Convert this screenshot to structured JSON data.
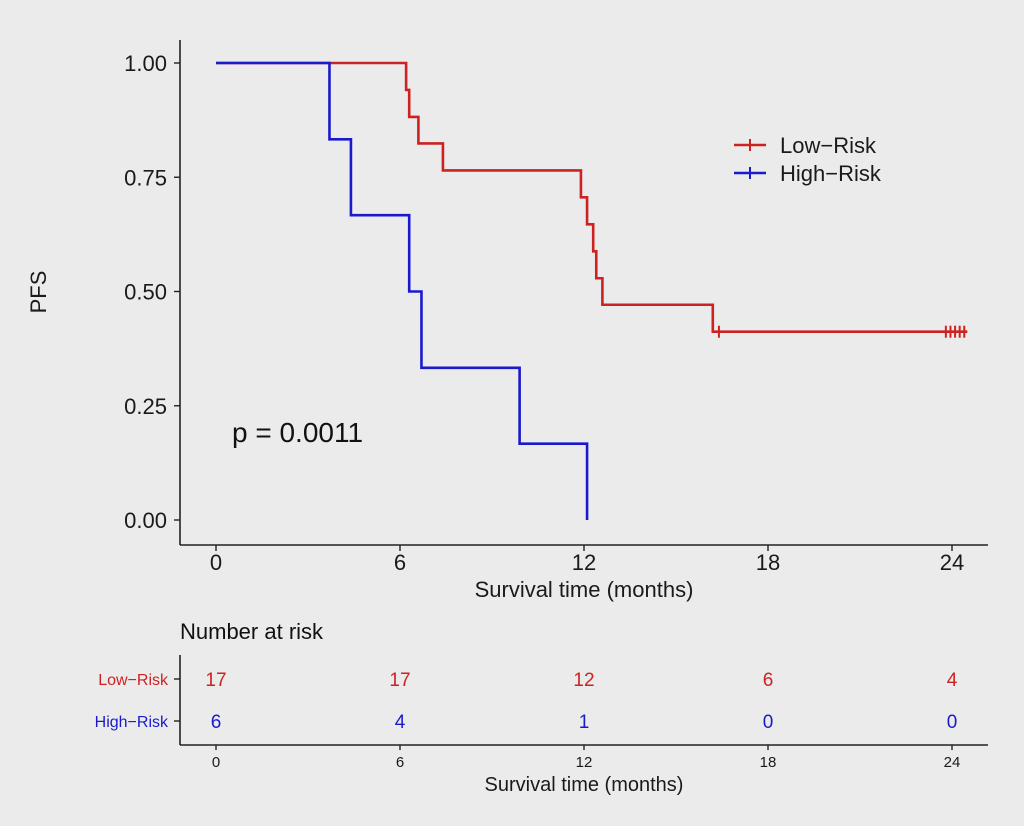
{
  "chart_data": [
    {
      "type": "line",
      "subtype": "kaplan-meier step",
      "ylabel": "PFS",
      "xlabel": "Survival time (months)",
      "xlim": [
        0,
        24
      ],
      "ylim": [
        0,
        1
      ],
      "xticks": [
        0,
        6,
        12,
        18,
        24
      ],
      "xtick_labels": [
        "0",
        "6",
        "12",
        "18",
        "24"
      ],
      "yticks": [
        0,
        0.25,
        0.5,
        0.75,
        1.0
      ],
      "ytick_labels": [
        "0.00",
        "0.25",
        "0.50",
        "0.75",
        "1.00"
      ],
      "grid": false,
      "legend_position": "top-right",
      "annotation": "p = 0.0011",
      "series": [
        {
          "name": "Low−Risk",
          "color": "#cc2222",
          "steps": [
            [
              0,
              1.0
            ],
            [
              6.2,
              0.941
            ],
            [
              6.3,
              0.882
            ],
            [
              6.6,
              0.824
            ],
            [
              7.4,
              0.765
            ],
            [
              11.9,
              0.706
            ],
            [
              12.1,
              0.647
            ],
            [
              12.3,
              0.588
            ],
            [
              12.4,
              0.529
            ],
            [
              12.6,
              0.471
            ],
            [
              16.2,
              0.412
            ]
          ],
          "end_x": 24.5,
          "censored_x": [
            16.4,
            23.8,
            23.95,
            24.1,
            24.25,
            24.4
          ]
        },
        {
          "name": "High−Risk",
          "color": "#1a1acc",
          "steps": [
            [
              0,
              1.0
            ],
            [
              3.7,
              0.833
            ],
            [
              4.4,
              0.667
            ],
            [
              6.3,
              0.5
            ],
            [
              6.7,
              0.333
            ],
            [
              9.9,
              0.167
            ],
            [
              12.1,
              0.0
            ]
          ],
          "end_x": 12.1,
          "censored_x": []
        }
      ]
    },
    {
      "type": "table",
      "title": "Number at risk",
      "xlabel": "Survival time (months)",
      "times": [
        0,
        6,
        12,
        18,
        24
      ],
      "time_labels": [
        "0",
        "6",
        "12",
        "18",
        "24"
      ],
      "rows": [
        {
          "label": "Low−Risk",
          "color": "#cc2222",
          "values": [
            "17",
            "17",
            "12",
            "6",
            "4"
          ]
        },
        {
          "label": "High−Risk",
          "color": "#1a1acc",
          "values": [
            "6",
            "4",
            "1",
            "0",
            "0"
          ]
        }
      ]
    }
  ]
}
